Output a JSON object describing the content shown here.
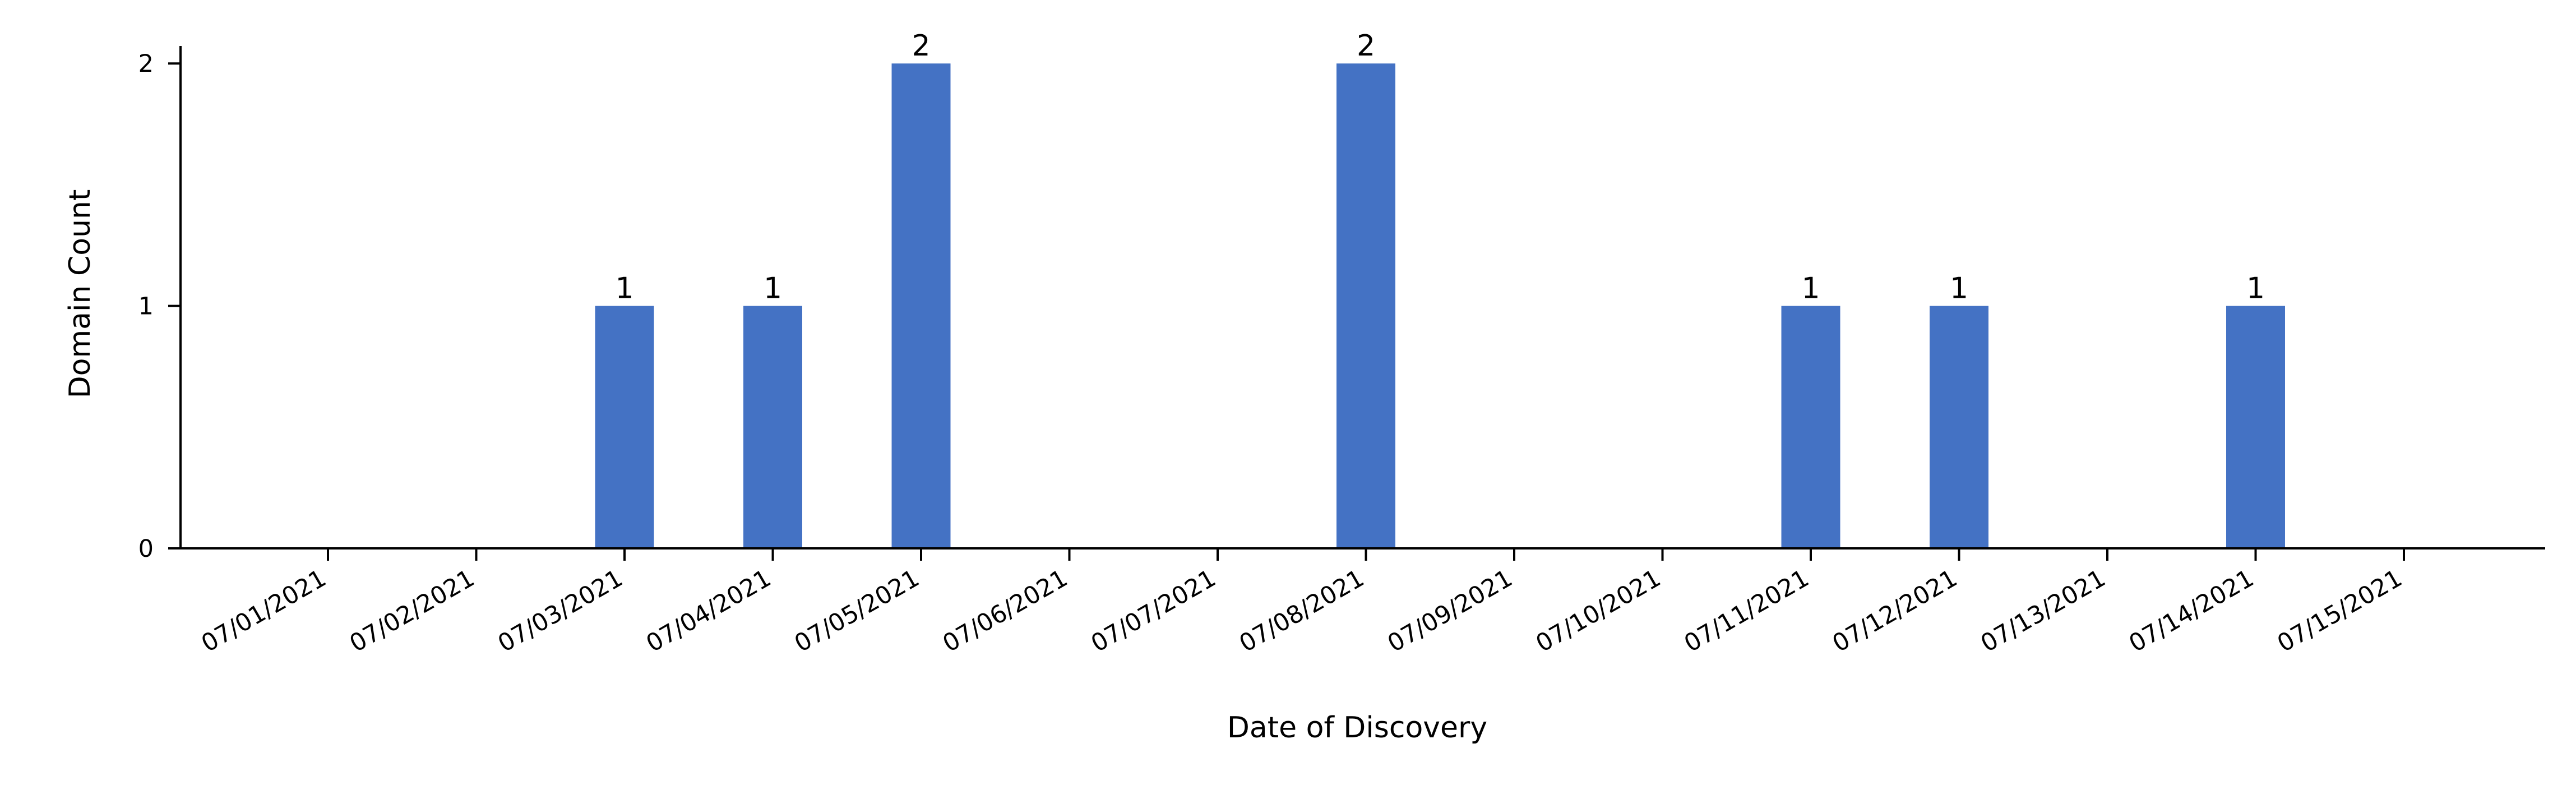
{
  "chart_data": {
    "type": "bar",
    "title": "",
    "xlabel": "Date of Discovery",
    "ylabel": "Domain Count",
    "categories": [
      "07/01/2021",
      "07/02/2021",
      "07/03/2021",
      "07/04/2021",
      "07/05/2021",
      "07/06/2021",
      "07/07/2021",
      "07/08/2021",
      "07/09/2021",
      "07/10/2021",
      "07/11/2021",
      "07/12/2021",
      "07/13/2021",
      "07/14/2021",
      "07/15/2021"
    ],
    "values": [
      0,
      0,
      1,
      1,
      2,
      0,
      0,
      2,
      0,
      0,
      1,
      1,
      0,
      1,
      0
    ],
    "ylim": [
      0,
      2.1
    ],
    "yticks": [
      0,
      1,
      2
    ],
    "grid": false,
    "legend": "none",
    "colors": {
      "bar": "#4472c4"
    }
  }
}
